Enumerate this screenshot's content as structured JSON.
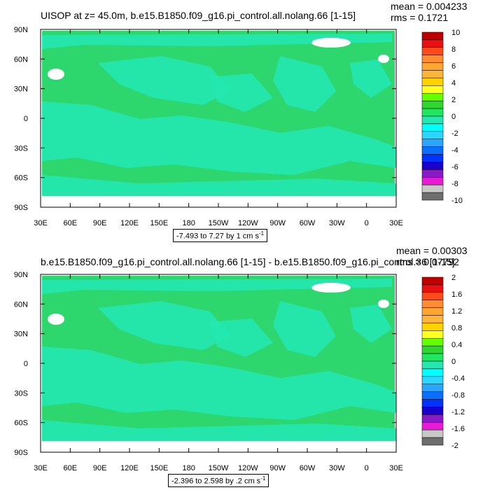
{
  "chart_data": [
    {
      "type": "heatmap",
      "title": "UISOP at z=  45.0m, b.e15.B1850.f09_g16.pi_control.all.nolang.66 [1-15]",
      "stats": {
        "mean": "mean = 0.004233",
        "rms": "rms = 0.1721"
      },
      "x_ticks": [
        "30E",
        "60E",
        "90E",
        "120E",
        "150E",
        "180",
        "150W",
        "120W",
        "90W",
        "60W",
        "30W",
        "0",
        "30E"
      ],
      "y_ticks": [
        "90N",
        "60N",
        "30N",
        "0",
        "30S",
        "60S",
        "90S"
      ],
      "colorbar_labels": [
        "10",
        "8",
        "6",
        "4",
        "2",
        "0",
        "-2",
        "-4",
        "-6",
        "-8",
        "-10"
      ],
      "colorbar_colors": [
        "#c00000",
        "#e81010",
        "#ff4a1a",
        "#ff8c2e",
        "#ffa530",
        "#ffb43c",
        "#ffd200",
        "#ffff20",
        "#66ff00",
        "#2ed62e",
        "#20e660",
        "#23e8b0",
        "#00ffff",
        "#2bd6ff",
        "#2aa6ff",
        "#0a6eff",
        "#0033ff",
        "#1a00cc",
        "#8a1ac8",
        "#e81ad6",
        "#c8c8c8",
        "#6e6e6e"
      ],
      "range_text": "-7.493 to 7.27 by 1 cm s",
      "range_sup": "-1",
      "dominant_color": "#2ed66e"
    },
    {
      "type": "heatmap",
      "title": "b.e15.B1850.f09_g16.pi_control.all.nolang.66 [1-15] - b.e15.B1850.f09_g16.pi_control.36 [1-15]",
      "stats": {
        "mean": "mean = 0.00303",
        "rms": "rms = 0.07792"
      },
      "x_ticks": [
        "30E",
        "60E",
        "90E",
        "120E",
        "150E",
        "180",
        "150W",
        "120W",
        "90W",
        "60W",
        "30W",
        "0",
        "30E"
      ],
      "y_ticks": [
        "90N",
        "60N",
        "30N",
        "0",
        "30S",
        "60S",
        "90S"
      ],
      "colorbar_labels": [
        "2",
        "1.6",
        "1.2",
        "0.8",
        "0.4",
        "0",
        "-0.4",
        "-0.8",
        "-1.2",
        "-1.6",
        "-2"
      ],
      "colorbar_colors": [
        "#c00000",
        "#e81010",
        "#ff4a1a",
        "#ff8c2e",
        "#ffa530",
        "#ffb43c",
        "#ffd200",
        "#ffff20",
        "#66ff00",
        "#2ed62e",
        "#20e660",
        "#23e8b0",
        "#00ffff",
        "#2bd6ff",
        "#2aa6ff",
        "#0a6eff",
        "#0033ff",
        "#1a00cc",
        "#8a1ac8",
        "#e81ad6",
        "#c8c8c8",
        "#6e6e6e"
      ],
      "range_text": "-2.396 to 2.598 by .2 cm s",
      "range_sup": "-1",
      "dominant_color": "#2ed66e"
    }
  ]
}
